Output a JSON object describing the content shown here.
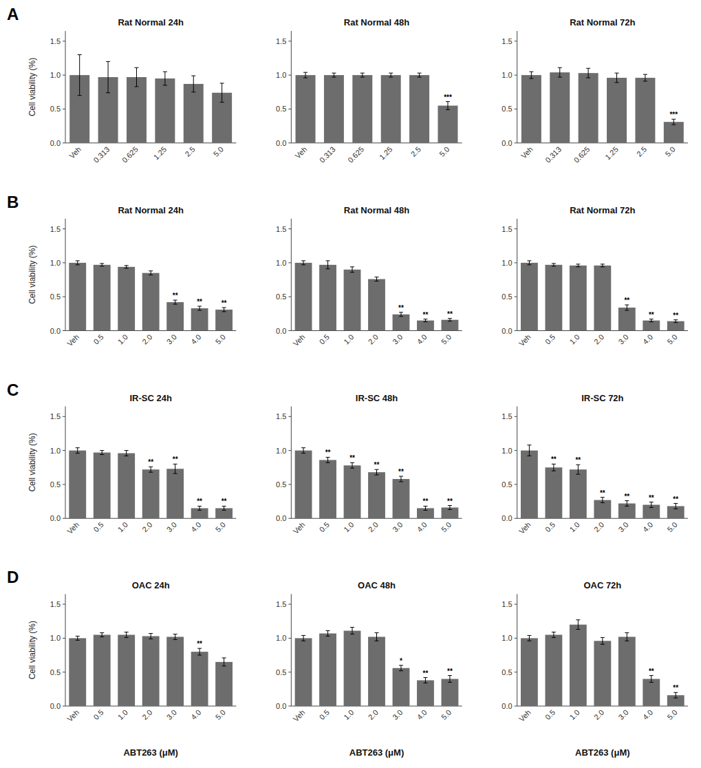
{
  "chart_data": [
    {
      "type": "bar",
      "title": "Rat Normal 24h",
      "y_label": "Cell viability (%)",
      "annotations": [
        "A"
      ],
      "categories": [
        "Veh",
        "0.313",
        "0.625",
        "1.25",
        "2.5",
        "5.0"
      ],
      "values": [
        1.0,
        0.97,
        0.97,
        0.95,
        0.87,
        0.74
      ],
      "errors": [
        0.3,
        0.23,
        0.14,
        0.1,
        0.12,
        0.14
      ],
      "sig_labels": [
        null,
        null,
        null,
        null,
        null,
        null
      ],
      "color": "#6d6d6d",
      "ylim": [
        0,
        1.65
      ],
      "yticks": [
        {
          "value": 0.0,
          "label": "0.0"
        },
        0.5,
        {
          "value": 1.0,
          "label": "1.0"
        },
        1.5
      ],
      "grid": false
    },
    {
      "type": "bar",
      "title": "Rat Normal 48h",
      "categories": [
        "Veh",
        "0.313",
        "0.625",
        "1.25",
        "2.5",
        "5.0"
      ],
      "values": [
        1.0,
        1.0,
        1.0,
        1.0,
        1.0,
        0.55
      ],
      "errors": [
        0.04,
        0.03,
        0.03,
        0.03,
        0.03,
        0.06
      ],
      "sig_labels": [
        null,
        null,
        null,
        null,
        null,
        "***"
      ],
      "color": "#6d6d6d",
      "ylim": [
        0,
        1.65
      ],
      "yticks": [
        {
          "value": 0.0,
          "label": "0.0"
        },
        0.5,
        {
          "value": 1.0,
          "label": "1.0"
        },
        1.5
      ],
      "grid": false
    },
    {
      "type": "bar",
      "title": "Rat Normal 72h",
      "categories": [
        "Veh",
        "0.313",
        "0.625",
        "1.25",
        "2.5",
        "5.0"
      ],
      "values": [
        1.0,
        1.04,
        1.03,
        0.96,
        0.96,
        0.31
      ],
      "errors": [
        0.05,
        0.07,
        0.07,
        0.07,
        0.05,
        0.04
      ],
      "sig_labels": [
        null,
        null,
        null,
        null,
        null,
        "***"
      ],
      "color": "#6d6d6d",
      "ylim": [
        0,
        1.65
      ],
      "yticks": [
        {
          "value": 0.0,
          "label": "0.0"
        },
        0.5,
        {
          "value": 1.0,
          "label": "1.0"
        },
        1.5
      ],
      "grid": false
    },
    {
      "type": "bar",
      "title": "Rat Normal 24h",
      "y_label": "Cell viability (%)",
      "annotations": [
        "B"
      ],
      "categories": [
        "Veh",
        "0.5",
        "1.0",
        "2.0",
        "3.0",
        "4.0",
        "5.0"
      ],
      "values": [
        1.0,
        0.97,
        0.94,
        0.85,
        0.42,
        0.33,
        0.31
      ],
      "errors": [
        0.03,
        0.02,
        0.02,
        0.03,
        0.03,
        0.03,
        0.03
      ],
      "sig_labels": [
        null,
        null,
        null,
        null,
        "**",
        "**",
        "**"
      ],
      "color": "#6d6d6d",
      "ylim": [
        0,
        1.65
      ],
      "yticks": [
        {
          "value": 0.0,
          "label": "0.0"
        },
        0.5,
        {
          "value": 1.0,
          "label": "1.0"
        },
        1.5
      ],
      "grid": false
    },
    {
      "type": "bar",
      "title": "Rat Normal 48h",
      "categories": [
        "Veh",
        "0.5",
        "1.0",
        "2.0",
        "3.0",
        "4.0",
        "5.0"
      ],
      "values": [
        1.0,
        0.97,
        0.9,
        0.76,
        0.24,
        0.15,
        0.16
      ],
      "errors": [
        0.03,
        0.06,
        0.04,
        0.03,
        0.03,
        0.02,
        0.02
      ],
      "sig_labels": [
        null,
        null,
        null,
        null,
        "**",
        "**",
        "**"
      ],
      "color": "#6d6d6d",
      "ylim": [
        0,
        1.65
      ],
      "yticks": [
        {
          "value": 0.0,
          "label": "0.0"
        },
        0.5,
        {
          "value": 1.0,
          "label": "1.0"
        },
        1.5
      ],
      "grid": false
    },
    {
      "type": "bar",
      "title": "Rat Normal 72h",
      "categories": [
        "Veh",
        "0.5",
        "1.0",
        "2.0",
        "3.0",
        "4.0",
        "5.0"
      ],
      "values": [
        1.0,
        0.97,
        0.96,
        0.96,
        0.34,
        0.15,
        0.14
      ],
      "errors": [
        0.03,
        0.02,
        0.02,
        0.02,
        0.04,
        0.02,
        0.02
      ],
      "sig_labels": [
        null,
        null,
        null,
        null,
        "**",
        "**",
        "**"
      ],
      "color": "#6d6d6d",
      "ylim": [
        0,
        1.65
      ],
      "yticks": [
        {
          "value": 0.0,
          "label": "0.0"
        },
        0.5,
        {
          "value": 1.0,
          "label": "1.0"
        },
        1.5
      ],
      "grid": false
    },
    {
      "type": "bar",
      "title": "IR-SC 24h",
      "y_label": "Cell viability (%)",
      "annotations": [
        "C"
      ],
      "categories": [
        "Veh",
        "0.5",
        "1.0",
        "2.0",
        "3.0",
        "4.0",
        "5.0"
      ],
      "values": [
        1.0,
        0.97,
        0.96,
        0.72,
        0.73,
        0.15,
        0.15
      ],
      "errors": [
        0.04,
        0.03,
        0.04,
        0.04,
        0.07,
        0.03,
        0.03
      ],
      "sig_labels": [
        null,
        null,
        null,
        "**",
        "**",
        "**",
        "**"
      ],
      "color": "#6d6d6d",
      "ylim": [
        0,
        1.65
      ],
      "yticks": [
        {
          "value": 0.0,
          "label": "0.0"
        },
        0.5,
        {
          "value": 1.0,
          "label": "1.0"
        },
        1.5
      ],
      "grid": false
    },
    {
      "type": "bar",
      "title": "IR-SC 48h",
      "categories": [
        "Veh",
        "0.5",
        "1.0",
        "2.0",
        "3.0",
        "4.0",
        "5.0"
      ],
      "values": [
        1.0,
        0.86,
        0.78,
        0.68,
        0.58,
        0.15,
        0.16
      ],
      "errors": [
        0.04,
        0.04,
        0.04,
        0.04,
        0.04,
        0.03,
        0.03
      ],
      "sig_labels": [
        null,
        "**",
        "**",
        "**",
        "**",
        "**",
        "**"
      ],
      "color": "#6d6d6d",
      "ylim": [
        0,
        1.65
      ],
      "yticks": [
        {
          "value": 0.0,
          "label": "0.0"
        },
        0.5,
        {
          "value": 1.0,
          "label": "1.0"
        },
        1.5
      ],
      "grid": false
    },
    {
      "type": "bar",
      "title": "IR-SC 72h",
      "categories": [
        "Veh",
        "0.5",
        "1.0",
        "2.0",
        "3.0",
        "4.0",
        "5.0"
      ],
      "values": [
        1.0,
        0.75,
        0.72,
        0.27,
        0.22,
        0.2,
        0.18
      ],
      "errors": [
        0.08,
        0.05,
        0.07,
        0.04,
        0.04,
        0.04,
        0.04
      ],
      "sig_labels": [
        null,
        "**",
        "**",
        "**",
        "**",
        "**",
        "**"
      ],
      "color": "#6d6d6d",
      "ylim": [
        0,
        1.65
      ],
      "yticks": [
        {
          "value": 0.0,
          "label": "0.0"
        },
        0.5,
        {
          "value": 1.0,
          "label": "1.0"
        },
        1.5
      ],
      "grid": false
    },
    {
      "type": "bar",
      "title": "OAC 24h",
      "y_label": "Cell viability (%)",
      "x_label": "ABT263 (μM)",
      "annotations": [
        "D"
      ],
      "categories": [
        "Veh",
        "0.5",
        "1.0",
        "2.0",
        "3.0",
        "4.0",
        "5.0"
      ],
      "values": [
        1.0,
        1.05,
        1.05,
        1.03,
        1.02,
        0.8,
        0.65
      ],
      "errors": [
        0.03,
        0.03,
        0.04,
        0.04,
        0.04,
        0.05,
        0.06
      ],
      "sig_labels": [
        null,
        null,
        null,
        null,
        null,
        "**",
        null
      ],
      "color": "#6d6d6d",
      "ylim": [
        0,
        1.65
      ],
      "yticks": [
        {
          "value": 0.0,
          "label": "0.0"
        },
        0.5,
        {
          "value": 1.0,
          "label": "1.0"
        },
        1.5
      ],
      "grid": false
    },
    {
      "type": "bar",
      "title": "OAC 48h",
      "x_label": "ABT263 (μM)",
      "categories": [
        "Veh",
        "0.5",
        "1.0",
        "2.0",
        "3.0",
        "4.0",
        "5.0"
      ],
      "values": [
        1.0,
        1.07,
        1.11,
        1.02,
        0.56,
        0.38,
        0.4
      ],
      "errors": [
        0.04,
        0.04,
        0.05,
        0.06,
        0.04,
        0.04,
        0.05
      ],
      "sig_labels": [
        null,
        null,
        null,
        null,
        "*",
        "**",
        "**"
      ],
      "color": "#6d6d6d",
      "ylim": [
        0,
        1.65
      ],
      "yticks": [
        {
          "value": 0.0,
          "label": "0.0"
        },
        0.5,
        {
          "value": 1.0,
          "label": "1.0"
        },
        1.5
      ],
      "grid": false
    },
    {
      "type": "bar",
      "title": "OAC 72h",
      "x_label": "ABT263 (μM)",
      "categories": [
        "Veh",
        "0.5",
        "1.0",
        "2.0",
        "3.0",
        "4.0",
        "5.0"
      ],
      "values": [
        1.0,
        1.05,
        1.2,
        0.96,
        1.02,
        0.4,
        0.16
      ],
      "errors": [
        0.04,
        0.04,
        0.07,
        0.05,
        0.06,
        0.05,
        0.04
      ],
      "sig_labels": [
        null,
        null,
        null,
        null,
        null,
        "**",
        "**"
      ],
      "color": "#6d6d6d",
      "ylim": [
        0,
        1.65
      ],
      "yticks": [
        {
          "value": 0.0,
          "label": "0.0"
        },
        0.5,
        {
          "value": 1.0,
          "label": "1.0"
        },
        1.5
      ],
      "grid": false
    }
  ]
}
